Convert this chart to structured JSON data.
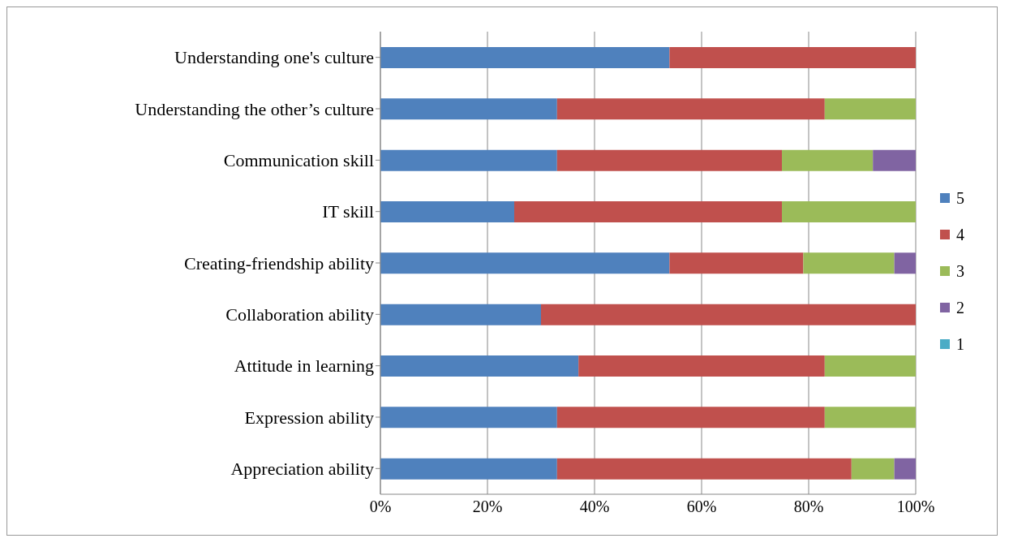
{
  "chart_data": {
    "type": "bar",
    "orientation": "horizontal",
    "stacked": true,
    "categories": [
      "Understanding one's culture",
      "Understanding the other’s culture",
      "Communication skill",
      "IT skill",
      "Creating-friendship ability",
      "Collaboration ability",
      "Attitude in learning",
      "Expression ability",
      "Appreciation ability"
    ],
    "series": [
      {
        "name": "5",
        "color": "#4f81bd",
        "values": [
          54,
          33,
          33,
          25,
          54,
          30,
          37,
          33,
          33
        ]
      },
      {
        "name": "4",
        "color": "#c0504d",
        "values": [
          46,
          50,
          42,
          50,
          25,
          70,
          46,
          50,
          55
        ]
      },
      {
        "name": "3",
        "color": "#9bbb59",
        "values": [
          0,
          17,
          17,
          25,
          17,
          0,
          17,
          17,
          8
        ]
      },
      {
        "name": "2",
        "color": "#8064a2",
        "values": [
          0,
          0,
          8,
          0,
          4,
          0,
          0,
          0,
          4
        ]
      },
      {
        "name": "1",
        "color": "#4bacc6",
        "values": [
          0,
          0,
          0,
          0,
          0,
          0,
          0,
          0,
          0
        ]
      }
    ],
    "xlim": [
      0,
      100
    ],
    "xticks": [
      {
        "value": 0,
        "label": "0%"
      },
      {
        "value": 20,
        "label": "20%"
      },
      {
        "value": 40,
        "label": "40%"
      },
      {
        "value": 60,
        "label": "60%"
      },
      {
        "value": 80,
        "label": "80%"
      },
      {
        "value": 100,
        "label": "100%"
      }
    ],
    "grid": "x",
    "legend": "right"
  }
}
